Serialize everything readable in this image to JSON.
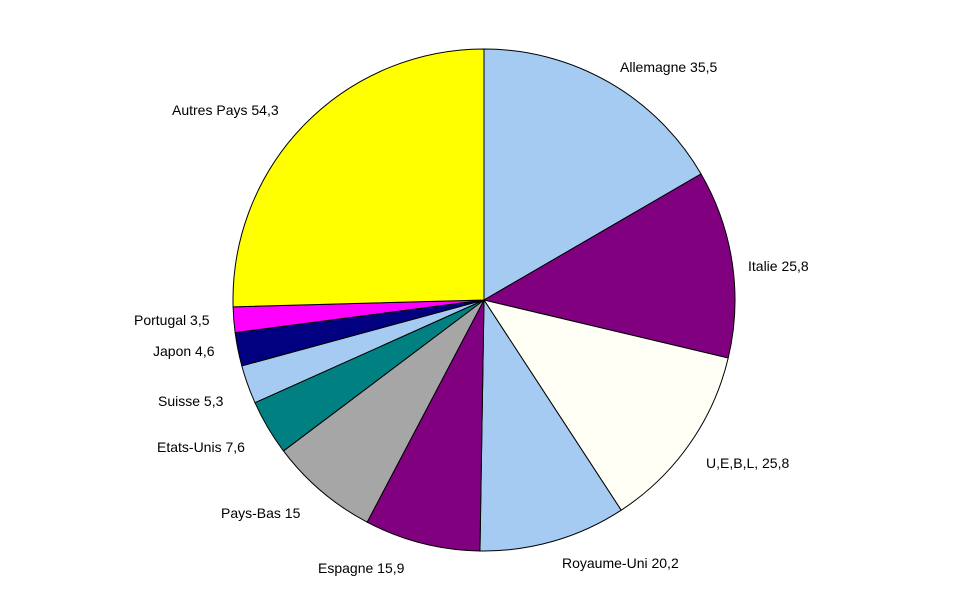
{
  "chart_data": {
    "type": "pie",
    "title": "",
    "start": "12 o'clock",
    "direction": "clockwise",
    "label_format": "{label} {value}",
    "slices": [
      {
        "label": "Allemagne",
        "value": "35,5",
        "numeric": 35.5,
        "color": "#a6cbf3"
      },
      {
        "label": "Italie",
        "value": "25,8",
        "numeric": 25.8,
        "color": "#800080"
      },
      {
        "label": "U,E,B,L,",
        "value": "25,8",
        "numeric": 25.8,
        "color": "#fffff5"
      },
      {
        "label": "Royaume-Uni",
        "value": "20,2",
        "numeric": 20.2,
        "color": "#a6cbf3"
      },
      {
        "label": "Espagne",
        "value": "15,9",
        "numeric": 15.9,
        "color": "#800080"
      },
      {
        "label": "Pays-Bas",
        "value": "15",
        "numeric": 15.0,
        "color": "#a6a6a6"
      },
      {
        "label": "Etats-Unis",
        "value": "7,6",
        "numeric": 7.6,
        "color": "#008080"
      },
      {
        "label": "Suisse",
        "value": "5,3",
        "numeric": 5.3,
        "color": "#a6cbf3"
      },
      {
        "label": "Japon",
        "value": "4,6",
        "numeric": 4.6,
        "color": "#000080"
      },
      {
        "label": "Portugal",
        "value": "3,5",
        "numeric": 3.5,
        "color": "#ff00ff"
      },
      {
        "label": "Autres Pays",
        "value": "54,3",
        "numeric": 54.3,
        "color": "#ffff00"
      }
    ]
  }
}
